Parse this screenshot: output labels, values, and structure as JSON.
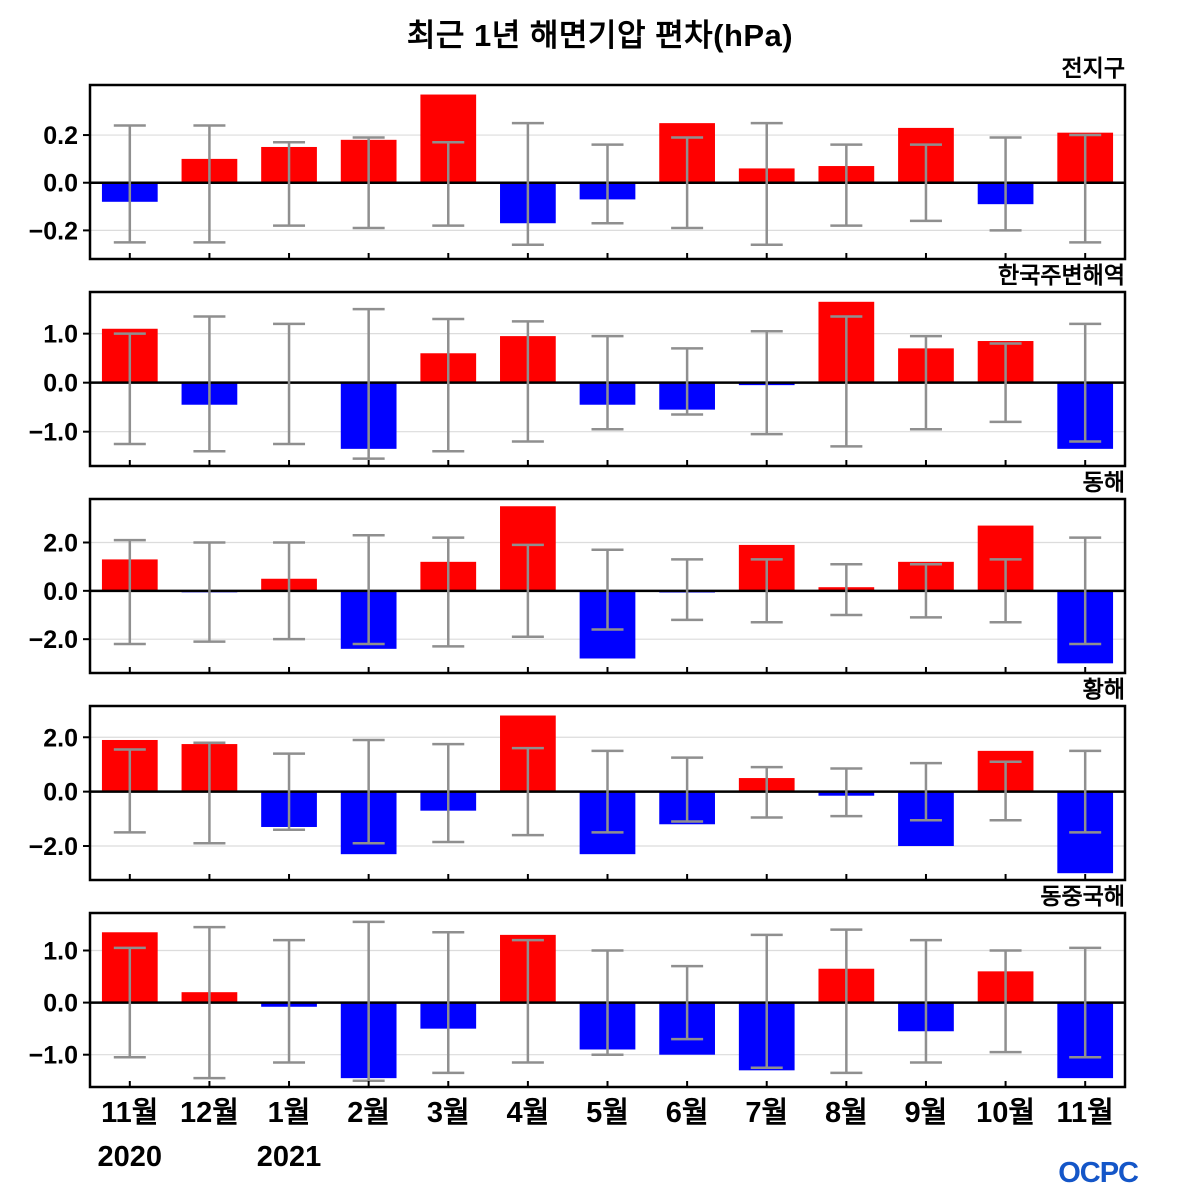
{
  "title": "최근 1년 해면기압 편차(hPa)",
  "logo": "OCPC",
  "months": [
    "11월",
    "12월",
    "1월",
    "2월",
    "3월",
    "4월",
    "5월",
    "6월",
    "7월",
    "8월",
    "9월",
    "10월",
    "11월"
  ],
  "years": [
    {
      "label": "2020",
      "month_index": 0
    },
    {
      "label": "2021",
      "month_index": 2
    }
  ],
  "colors": {
    "positive": "#ff0000",
    "negative": "#0000ff",
    "error": "#8f8f8f",
    "grid": "#dcdcdc",
    "axis": "#000000",
    "logo_blue": "#1456c8"
  },
  "chart_data": [
    {
      "type": "bar",
      "title": "전지구",
      "unit": "hPa",
      "categories": [
        "11월",
        "12월",
        "1월",
        "2월",
        "3월",
        "4월",
        "5월",
        "6월",
        "7월",
        "8월",
        "9월",
        "10월",
        "11월"
      ],
      "values": [
        -0.08,
        0.1,
        0.15,
        0.18,
        0.37,
        -0.17,
        -0.07,
        0.25,
        0.06,
        0.07,
        0.23,
        -0.09,
        0.21
      ],
      "band_low": [
        -0.25,
        -0.25,
        -0.18,
        -0.19,
        -0.18,
        -0.26,
        -0.17,
        -0.19,
        -0.26,
        -0.18,
        -0.16,
        -0.2,
        -0.25
      ],
      "band_high": [
        0.24,
        0.24,
        0.17,
        0.19,
        0.17,
        0.25,
        0.16,
        0.19,
        0.25,
        0.16,
        0.16,
        0.19,
        0.2
      ],
      "yticks": [
        0.2,
        0.0,
        -0.2
      ],
      "ylim": [
        -0.32,
        0.41
      ]
    },
    {
      "type": "bar",
      "title": "한국주변해역",
      "unit": "hPa",
      "categories": [
        "11월",
        "12월",
        "1월",
        "2월",
        "3월",
        "4월",
        "5월",
        "6월",
        "7월",
        "8월",
        "9월",
        "10월",
        "11월"
      ],
      "values": [
        1.1,
        -0.45,
        0.02,
        -1.35,
        0.6,
        0.95,
        -0.45,
        -0.55,
        -0.05,
        1.65,
        0.7,
        0.85,
        -1.35
      ],
      "band_low": [
        -1.25,
        -1.4,
        -1.25,
        -1.55,
        -1.4,
        -1.2,
        -0.95,
        -0.65,
        -1.05,
        -1.3,
        -0.95,
        -0.8,
        -1.2
      ],
      "band_high": [
        1.0,
        1.35,
        1.2,
        1.5,
        1.3,
        1.25,
        0.95,
        0.7,
        1.05,
        1.35,
        0.95,
        0.8,
        1.2
      ],
      "yticks": [
        1.0,
        0.0,
        -1.0
      ],
      "ylim": [
        -1.7,
        1.85
      ]
    },
    {
      "type": "bar",
      "title": "동해",
      "unit": "hPa",
      "categories": [
        "11월",
        "12월",
        "1월",
        "2월",
        "3월",
        "4월",
        "5월",
        "6월",
        "7월",
        "8월",
        "9월",
        "10월",
        "11월"
      ],
      "values": [
        1.3,
        -0.05,
        0.5,
        -2.4,
        1.2,
        3.5,
        -2.8,
        -0.07,
        1.9,
        0.15,
        1.2,
        2.7,
        -3.0
      ],
      "band_low": [
        -2.2,
        -2.1,
        -2.0,
        -2.2,
        -2.3,
        -1.9,
        -1.6,
        -1.2,
        -1.3,
        -1.0,
        -1.1,
        -1.3,
        -2.2
      ],
      "band_high": [
        2.1,
        2.0,
        2.0,
        2.3,
        2.2,
        1.9,
        1.7,
        1.3,
        1.3,
        1.1,
        1.1,
        1.3,
        2.2
      ],
      "yticks": [
        2.0,
        0.0,
        -2.0
      ],
      "ylim": [
        -3.4,
        3.8
      ]
    },
    {
      "type": "bar",
      "title": "황해",
      "unit": "hPa",
      "categories": [
        "11월",
        "12월",
        "1월",
        "2월",
        "3월",
        "4월",
        "5월",
        "6월",
        "7월",
        "8월",
        "9월",
        "10월",
        "11월"
      ],
      "values": [
        1.9,
        1.75,
        -1.3,
        -2.3,
        -0.7,
        2.8,
        -2.3,
        -1.2,
        0.5,
        -0.15,
        -2.0,
        1.5,
        -3.0
      ],
      "band_low": [
        -1.5,
        -1.9,
        -1.4,
        -1.9,
        -1.85,
        -1.6,
        -1.5,
        -1.1,
        -0.95,
        -0.9,
        -1.05,
        -1.05,
        -1.5
      ],
      "band_high": [
        1.55,
        1.8,
        1.4,
        1.9,
        1.75,
        1.6,
        1.5,
        1.25,
        0.9,
        0.85,
        1.05,
        1.1,
        1.5
      ],
      "yticks": [
        2.0,
        0.0,
        -2.0
      ],
      "ylim": [
        -3.25,
        3.15
      ]
    },
    {
      "type": "bar",
      "title": "동중국해",
      "unit": "hPa",
      "categories": [
        "11월",
        "12월",
        "1월",
        "2월",
        "3월",
        "4월",
        "5월",
        "6월",
        "7월",
        "8월",
        "9월",
        "10월",
        "11월"
      ],
      "values": [
        1.35,
        0.2,
        -0.08,
        -1.45,
        -0.5,
        1.3,
        -0.9,
        -1.0,
        -1.3,
        0.65,
        -0.55,
        0.6,
        -1.45
      ],
      "band_low": [
        -1.05,
        -1.45,
        -1.15,
        -1.5,
        -1.35,
        -1.15,
        -1.0,
        -0.7,
        -1.25,
        -1.35,
        -1.15,
        -0.95,
        -1.05
      ],
      "band_high": [
        1.05,
        1.45,
        1.2,
        1.55,
        1.35,
        1.2,
        1.0,
        0.7,
        1.3,
        1.4,
        1.2,
        1.0,
        1.05
      ],
      "yticks": [
        1.0,
        0.0,
        -1.0
      ],
      "ylim": [
        -1.62,
        1.72
      ]
    }
  ]
}
